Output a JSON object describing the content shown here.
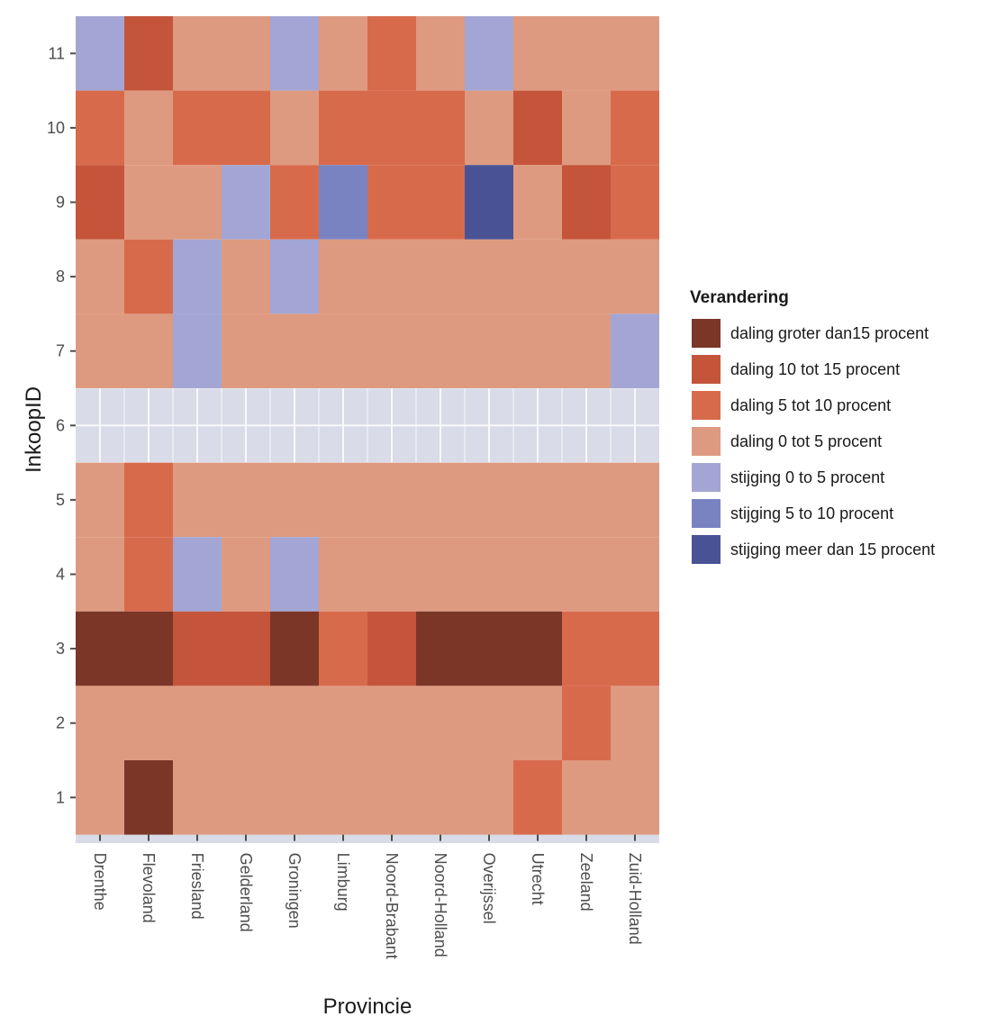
{
  "chart_data": {
    "type": "heatmap",
    "xlabel": "Provincie",
    "ylabel": "InkoopID",
    "x_categories": [
      "Drenthe",
      "Flevoland",
      "Friesland",
      "Gelderland",
      "Groningen",
      "Limburg",
      "Noord-Brabant",
      "Noord-Holland",
      "Overijssel",
      "Utrecht",
      "Zeeland",
      "Zuid-Holland"
    ],
    "y_ticks": [
      "1",
      "2",
      "3",
      "4",
      "5",
      "6",
      "7",
      "8",
      "9",
      "10",
      "11"
    ],
    "legend_title": "Verandering",
    "legend_position": "right",
    "categories": [
      {
        "code": "d15",
        "label": "daling groter dan15 procent",
        "color": "#7b3628"
      },
      {
        "code": "d10",
        "label": "daling 10 tot 15 procent",
        "color": "#c4553a"
      },
      {
        "code": "d5",
        "label": "daling 5 tot 10 procent",
        "color": "#d86a4c"
      },
      {
        "code": "d0",
        "label": "daling 0 tot 5 procent",
        "color": "#de9a80"
      },
      {
        "code": "s0",
        "label": "stijging 0 to 5 procent",
        "color": "#a3a6d4"
      },
      {
        "code": "s5",
        "label": "stijging 5 to 10 procent",
        "color": "#7a83c2"
      },
      {
        "code": "s15",
        "label": "stijging meer dan 15 procent",
        "color": "#4a5296"
      }
    ],
    "rows": [
      {
        "y": "11",
        "cells": [
          "s0",
          "d10",
          "d0",
          "d0",
          "s0",
          "d0",
          "d5",
          "d0",
          "s0",
          "d0",
          "d0",
          "d0"
        ]
      },
      {
        "y": "10",
        "cells": [
          "d5",
          "d0",
          "d5",
          "d5",
          "d0",
          "d5",
          "d5",
          "d5",
          "d0",
          "d10",
          "d0",
          "d5"
        ]
      },
      {
        "y": "9",
        "cells": [
          "d10",
          "d0",
          "d0",
          "s0",
          "d5",
          "s5",
          "d5",
          "d5",
          "s15",
          "d0",
          "d10",
          "d5"
        ]
      },
      {
        "y": "8",
        "cells": [
          "d0",
          "d5",
          "s0",
          "d0",
          "s0",
          "d0",
          "d0",
          "d0",
          "d0",
          "d0",
          "d0",
          "d0"
        ]
      },
      {
        "y": "7",
        "cells": [
          "d0",
          "d0",
          "s0",
          "d0",
          "d0",
          "d0",
          "d0",
          "d0",
          "d0",
          "d0",
          "d0",
          "s0"
        ]
      },
      {
        "y": "5",
        "cells": [
          "d0",
          "d5",
          "d0",
          "d0",
          "d0",
          "d0",
          "d0",
          "d0",
          "d0",
          "d0",
          "d0",
          "d0"
        ]
      },
      {
        "y": "4",
        "cells": [
          "d0",
          "d5",
          "s0",
          "d0",
          "s0",
          "d0",
          "d0",
          "d0",
          "d0",
          "d0",
          "d0",
          "d0"
        ]
      },
      {
        "y": "3",
        "cells": [
          "d15",
          "d15",
          "d10",
          "d10",
          "d15",
          "d5",
          "d10",
          "d15",
          "d15",
          "d15",
          "d5",
          "d5"
        ]
      },
      {
        "y": "2",
        "cells": [
          "d0",
          "d0",
          "d0",
          "d0",
          "d0",
          "d0",
          "d0",
          "d0",
          "d0",
          "d0",
          "d5",
          "d0"
        ]
      },
      {
        "y": "1",
        "cells": [
          "d0",
          "d15",
          "d0",
          "d0",
          "d0",
          "d0",
          "d0",
          "d0",
          "d0",
          "d5",
          "d0",
          "d0"
        ]
      }
    ],
    "panel_background": "#d9dbe8",
    "grid": true
  }
}
